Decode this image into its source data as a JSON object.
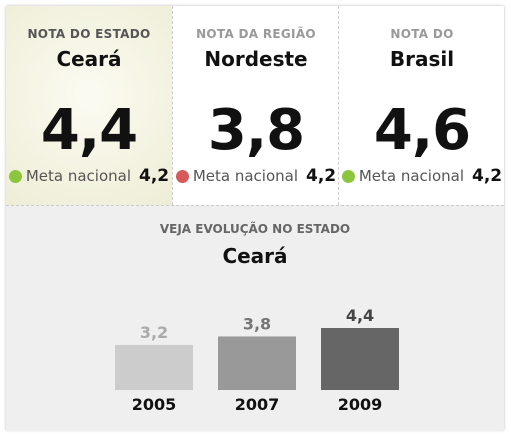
{
  "cards": [
    {
      "label": "NOTA DO ESTADO",
      "name": "Ceará",
      "score": "4,4",
      "goal_label": "Meta nacional",
      "goal": "4,2",
      "status_color": "#8cc63e"
    },
    {
      "label": "NOTA DA REGIÃO",
      "name": "Nordeste",
      "score": "3,8",
      "goal_label": "Meta nacional",
      "goal": "4,2",
      "status_color": "#d65a5a"
    },
    {
      "label": "NOTA DO",
      "name": "Brasil",
      "score": "4,6",
      "goal_label": "Meta nacional",
      "goal": "4,2",
      "status_color": "#8cc63e"
    }
  ],
  "chart_data": {
    "type": "bar",
    "title": "VEJA EVOLUÇÃO NO ESTADO",
    "subtitle": "Ceará",
    "categories": [
      "2005",
      "2007",
      "2009"
    ],
    "values": [
      3.2,
      3.8,
      4.4
    ],
    "value_labels": [
      "3,2",
      "3,8",
      "4,4"
    ],
    "colors": [
      "#cccccc",
      "#999999",
      "#666666"
    ],
    "label_colors": [
      "#aaaaaa",
      "#777777",
      "#444444"
    ]
  }
}
